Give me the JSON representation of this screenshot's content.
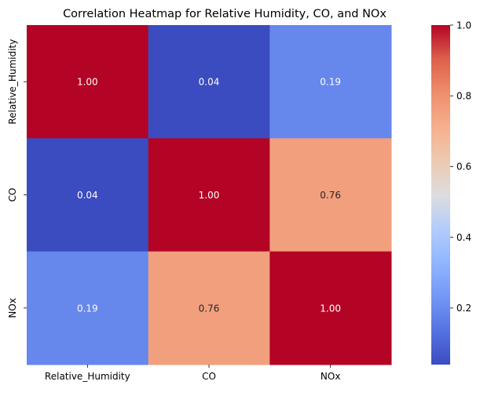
{
  "chart_data": {
    "type": "heatmap",
    "title": "Correlation Heatmap for Relative Humidity, CO, and NOx",
    "x_categories": [
      "Relative_Humidity",
      "CO",
      "NOx"
    ],
    "y_categories": [
      "Relative_Humidity",
      "CO",
      "NOx"
    ],
    "matrix": [
      [
        1.0,
        0.04,
        0.19
      ],
      [
        0.04,
        1.0,
        0.76
      ],
      [
        0.19,
        0.76,
        1.0
      ]
    ],
    "value_format": "0.00",
    "annotated": true,
    "colormap": "coolwarm",
    "colorbar": {
      "range": [
        0.04,
        1.0
      ],
      "ticks": [
        0.2,
        0.4,
        0.6,
        0.8,
        1.0
      ],
      "tick_labels": [
        "0.2",
        "0.4",
        "0.6",
        "0.8",
        "1.0"
      ]
    },
    "grid": false,
    "legend": "colorbar-right"
  }
}
